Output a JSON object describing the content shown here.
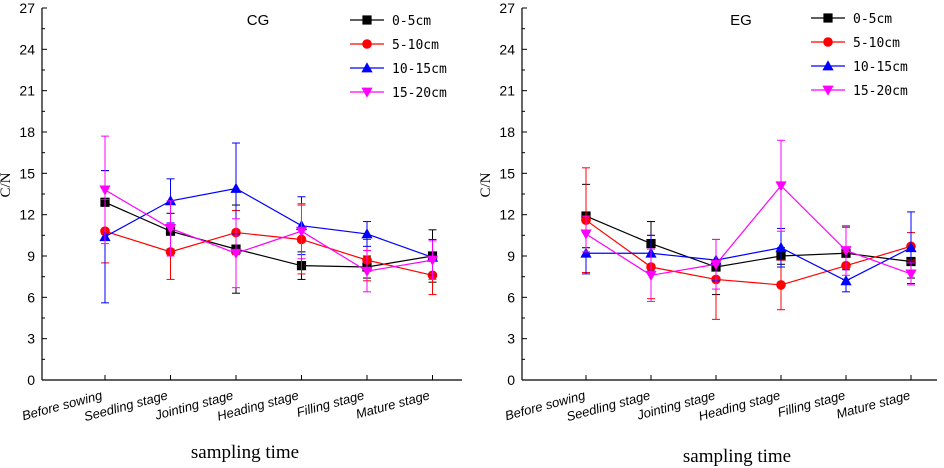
{
  "chart_data": [
    {
      "type": "line",
      "title": "CG",
      "xlabel": "sampling time",
      "ylabel": "C/N",
      "ylim": [
        0,
        27
      ],
      "yticks": [
        0,
        3,
        6,
        9,
        12,
        15,
        18,
        21,
        24,
        27
      ],
      "categories": [
        "Before sowing",
        "Seedling stage",
        "Jointing stage",
        "Heading stage",
        "Filling stage",
        "Mature stage"
      ],
      "legend_position": "top-right",
      "series": [
        {
          "name": "0-5cm",
          "color": "#000000",
          "marker": "square",
          "values": [
            12.9,
            10.8,
            9.5,
            8.3,
            8.2,
            9.0
          ],
          "errors": [
            2.3,
            1.3,
            3.2,
            1.0,
            0.8,
            1.9
          ]
        },
        {
          "name": "5-10cm",
          "color": "#ff0000",
          "marker": "circle",
          "values": [
            10.8,
            9.3,
            10.7,
            10.2,
            8.7,
            7.6
          ],
          "errors": [
            2.3,
            2.0,
            1.6,
            2.5,
            1.5,
            1.4
          ]
        },
        {
          "name": "10-15cm",
          "color": "#0000ff",
          "marker": "triangle-up",
          "values": [
            10.4,
            13.0,
            13.9,
            11.2,
            10.6,
            8.9
          ],
          "errors": [
            4.8,
            1.6,
            3.3,
            2.1,
            0.9,
            1.3
          ]
        },
        {
          "name": "15-20cm",
          "color": "#ff00ff",
          "marker": "triangle-down",
          "values": [
            13.8,
            11.0,
            9.2,
            10.8,
            7.9,
            8.7
          ],
          "errors": [
            3.9,
            2.0,
            2.5,
            2.0,
            1.5,
            1.4
          ]
        }
      ]
    },
    {
      "type": "line",
      "title": "EG",
      "xlabel": "sampling time",
      "ylabel": "C/N",
      "ylim": [
        0,
        27
      ],
      "yticks": [
        0,
        3,
        6,
        9,
        12,
        15,
        18,
        21,
        24,
        27
      ],
      "categories": [
        "Before sowing",
        "Seedling stage",
        "Jointing stage",
        "Heading stage",
        "Filling stage",
        "Mature stage"
      ],
      "legend_position": "top-right",
      "series": [
        {
          "name": "0-5cm",
          "color": "#000000",
          "marker": "square",
          "values": [
            11.9,
            9.9,
            8.2,
            9.0,
            9.2,
            8.6
          ],
          "errors": [
            2.3,
            1.6,
            2.0,
            0.6,
            1.9,
            1.2
          ]
        },
        {
          "name": "5-10cm",
          "color": "#ff0000",
          "marker": "circle",
          "values": [
            11.6,
            8.2,
            7.3,
            6.9,
            8.3,
            9.7
          ],
          "errors": [
            3.8,
            2.3,
            2.9,
            1.8,
            1.0,
            1.0
          ]
        },
        {
          "name": "10-15cm",
          "color": "#0000ff",
          "marker": "triangle-up",
          "values": [
            9.2,
            9.2,
            8.7,
            9.6,
            7.2,
            9.6
          ],
          "errors": [
            1.5,
            1.3,
            1.5,
            1.4,
            0.8,
            2.6
          ]
        },
        {
          "name": "15-20cm",
          "color": "#ff00ff",
          "marker": "triangle-down",
          "values": [
            10.6,
            7.6,
            8.4,
            14.1,
            9.4,
            7.7
          ],
          "errors": [
            1.3,
            1.9,
            1.8,
            3.3,
            1.8,
            0.8
          ]
        }
      ]
    }
  ]
}
